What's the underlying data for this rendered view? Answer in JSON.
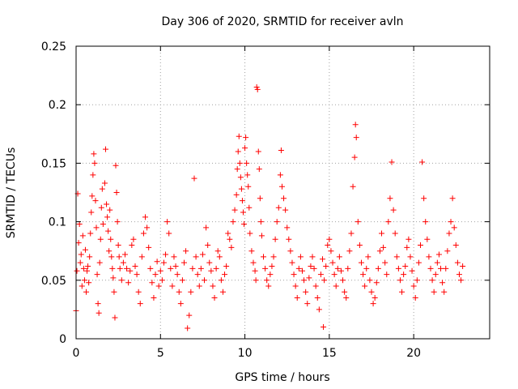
{
  "chart_data": {
    "type": "scatter",
    "title": "Day 306 of 2020, SRMTID for receiver avln",
    "xlabel": "GPS time / hours",
    "ylabel": "SRMTID / TECUs",
    "xlim": [
      0,
      24.5
    ],
    "ylim": [
      0,
      0.25
    ],
    "xticks": [
      0,
      5,
      10,
      15,
      20
    ],
    "xtick_labels": [
      "0",
      "5",
      "10",
      "15",
      "20"
    ],
    "yticks": [
      0,
      0.05,
      0.1,
      0.15,
      0.2,
      0.25
    ],
    "ytick_labels": [
      "0",
      "0.05",
      "0.1",
      "0.15",
      "0.2",
      "0.25"
    ],
    "grid": true,
    "marker": "plus",
    "color": "#ff0000",
    "series": [
      {
        "name": "SRMTID",
        "points": [
          [
            0.0,
            0.024
          ],
          [
            0.05,
            0.058
          ],
          [
            0.1,
            0.124
          ],
          [
            0.15,
            0.082
          ],
          [
            0.2,
            0.098
          ],
          [
            0.25,
            0.065
          ],
          [
            0.3,
            0.072
          ],
          [
            0.35,
            0.045
          ],
          [
            0.4,
            0.088
          ],
          [
            0.45,
            0.06
          ],
          [
            0.5,
            0.05
          ],
          [
            0.55,
            0.076
          ],
          [
            0.6,
            0.04
          ],
          [
            0.65,
            0.058
          ],
          [
            0.7,
            0.062
          ],
          [
            0.75,
            0.048
          ],
          [
            0.8,
            0.07
          ],
          [
            0.85,
            0.09
          ],
          [
            0.9,
            0.108
          ],
          [
            0.95,
            0.122
          ],
          [
            1.0,
            0.14
          ],
          [
            1.05,
            0.158
          ],
          [
            1.1,
            0.15
          ],
          [
            1.15,
            0.118
          ],
          [
            1.2,
            0.095
          ],
          [
            1.25,
            0.055
          ],
          [
            1.3,
            0.03
          ],
          [
            1.35,
            0.022
          ],
          [
            1.4,
            0.065
          ],
          [
            1.45,
            0.085
          ],
          [
            1.5,
            0.112
          ],
          [
            1.55,
            0.128
          ],
          [
            1.6,
            0.098
          ],
          [
            1.7,
            0.133
          ],
          [
            1.75,
            0.162
          ],
          [
            1.8,
            0.115
          ],
          [
            1.85,
            0.104
          ],
          [
            1.9,
            0.092
          ],
          [
            1.95,
            0.075
          ],
          [
            2.0,
            0.11
          ],
          [
            2.05,
            0.085
          ],
          [
            2.1,
            0.07
          ],
          [
            2.15,
            0.06
          ],
          [
            2.2,
            0.052
          ],
          [
            2.25,
            0.04
          ],
          [
            2.3,
            0.018
          ],
          [
            2.35,
            0.148
          ],
          [
            2.4,
            0.125
          ],
          [
            2.45,
            0.1
          ],
          [
            2.5,
            0.08
          ],
          [
            2.55,
            0.07
          ],
          [
            2.6,
            0.06
          ],
          [
            2.7,
            0.05
          ],
          [
            2.8,
            0.065
          ],
          [
            2.9,
            0.072
          ],
          [
            3.0,
            0.06
          ],
          [
            3.1,
            0.048
          ],
          [
            3.2,
            0.058
          ],
          [
            3.3,
            0.08
          ],
          [
            3.4,
            0.085
          ],
          [
            3.5,
            0.062
          ],
          [
            3.6,
            0.055
          ],
          [
            3.7,
            0.04
          ],
          [
            3.8,
            0.03
          ],
          [
            3.9,
            0.07
          ],
          [
            4.0,
            0.09
          ],
          [
            4.1,
            0.104
          ],
          [
            4.2,
            0.095
          ],
          [
            4.3,
            0.078
          ],
          [
            4.4,
            0.06
          ],
          [
            4.5,
            0.048
          ],
          [
            4.6,
            0.035
          ],
          [
            4.7,
            0.055
          ],
          [
            4.8,
            0.066
          ],
          [
            4.9,
            0.045
          ],
          [
            5.0,
            0.058
          ],
          [
            5.1,
            0.05
          ],
          [
            5.2,
            0.065
          ],
          [
            5.3,
            0.072
          ],
          [
            5.4,
            0.1
          ],
          [
            5.5,
            0.09
          ],
          [
            5.6,
            0.06
          ],
          [
            5.7,
            0.045
          ],
          [
            5.8,
            0.07
          ],
          [
            5.9,
            0.062
          ],
          [
            6.0,
            0.055
          ],
          [
            6.1,
            0.04
          ],
          [
            6.2,
            0.03
          ],
          [
            6.3,
            0.05
          ],
          [
            6.4,
            0.065
          ],
          [
            6.5,
            0.075
          ],
          [
            6.6,
            0.009
          ],
          [
            6.7,
            0.02
          ],
          [
            6.8,
            0.04
          ],
          [
            6.9,
            0.06
          ],
          [
            7.0,
            0.137
          ],
          [
            7.1,
            0.07
          ],
          [
            7.2,
            0.055
          ],
          [
            7.3,
            0.045
          ],
          [
            7.4,
            0.06
          ],
          [
            7.5,
            0.072
          ],
          [
            7.6,
            0.05
          ],
          [
            7.7,
            0.095
          ],
          [
            7.8,
            0.08
          ],
          [
            7.9,
            0.065
          ],
          [
            8.0,
            0.058
          ],
          [
            8.1,
            0.045
          ],
          [
            8.2,
            0.035
          ],
          [
            8.3,
            0.06
          ],
          [
            8.4,
            0.075
          ],
          [
            8.5,
            0.07
          ],
          [
            8.6,
            0.05
          ],
          [
            8.7,
            0.04
          ],
          [
            8.8,
            0.055
          ],
          [
            8.9,
            0.062
          ],
          [
            9.0,
            0.09
          ],
          [
            9.1,
            0.085
          ],
          [
            9.2,
            0.078
          ],
          [
            9.3,
            0.1
          ],
          [
            9.4,
            0.11
          ],
          [
            9.5,
            0.123
          ],
          [
            9.55,
            0.145
          ],
          [
            9.6,
            0.16
          ],
          [
            9.65,
            0.173
          ],
          [
            9.7,
            0.15
          ],
          [
            9.75,
            0.138
          ],
          [
            9.8,
            0.128
          ],
          [
            9.85,
            0.118
          ],
          [
            9.9,
            0.108
          ],
          [
            9.95,
            0.098
          ],
          [
            10.0,
            0.163
          ],
          [
            10.05,
            0.172
          ],
          [
            10.1,
            0.15
          ],
          [
            10.15,
            0.14
          ],
          [
            10.2,
            0.13
          ],
          [
            10.25,
            0.112
          ],
          [
            10.3,
            0.09
          ],
          [
            10.4,
            0.075
          ],
          [
            10.5,
            0.065
          ],
          [
            10.6,
            0.058
          ],
          [
            10.65,
            0.05
          ],
          [
            10.7,
            0.215
          ],
          [
            10.75,
            0.213
          ],
          [
            10.8,
            0.16
          ],
          [
            10.85,
            0.145
          ],
          [
            10.9,
            0.12
          ],
          [
            10.95,
            0.1
          ],
          [
            11.0,
            0.088
          ],
          [
            11.1,
            0.07
          ],
          [
            11.2,
            0.06
          ],
          [
            11.3,
            0.05
          ],
          [
            11.4,
            0.045
          ],
          [
            11.5,
            0.055
          ],
          [
            11.6,
            0.062
          ],
          [
            11.7,
            0.07
          ],
          [
            11.8,
            0.085
          ],
          [
            11.9,
            0.1
          ],
          [
            12.0,
            0.112
          ],
          [
            12.1,
            0.14
          ],
          [
            12.15,
            0.161
          ],
          [
            12.2,
            0.13
          ],
          [
            12.3,
            0.12
          ],
          [
            12.4,
            0.11
          ],
          [
            12.5,
            0.095
          ],
          [
            12.6,
            0.085
          ],
          [
            12.7,
            0.075
          ],
          [
            12.8,
            0.065
          ],
          [
            12.9,
            0.055
          ],
          [
            13.0,
            0.045
          ],
          [
            13.1,
            0.035
          ],
          [
            13.2,
            0.06
          ],
          [
            13.3,
            0.07
          ],
          [
            13.4,
            0.058
          ],
          [
            13.5,
            0.05
          ],
          [
            13.6,
            0.04
          ],
          [
            13.7,
            0.03
          ],
          [
            13.8,
            0.052
          ],
          [
            13.9,
            0.062
          ],
          [
            14.0,
            0.07
          ],
          [
            14.1,
            0.06
          ],
          [
            14.2,
            0.045
          ],
          [
            14.3,
            0.035
          ],
          [
            14.4,
            0.025
          ],
          [
            14.5,
            0.055
          ],
          [
            14.6,
            0.068
          ],
          [
            14.65,
            0.01
          ],
          [
            14.7,
            0.05
          ],
          [
            14.8,
            0.062
          ],
          [
            14.9,
            0.08
          ],
          [
            15.0,
            0.085
          ],
          [
            15.1,
            0.075
          ],
          [
            15.2,
            0.065
          ],
          [
            15.3,
            0.055
          ],
          [
            15.4,
            0.045
          ],
          [
            15.5,
            0.06
          ],
          [
            15.6,
            0.07
          ],
          [
            15.7,
            0.058
          ],
          [
            15.8,
            0.05
          ],
          [
            15.9,
            0.04
          ],
          [
            16.0,
            0.035
          ],
          [
            16.1,
            0.06
          ],
          [
            16.2,
            0.075
          ],
          [
            16.3,
            0.09
          ],
          [
            16.4,
            0.13
          ],
          [
            16.5,
            0.155
          ],
          [
            16.55,
            0.183
          ],
          [
            16.6,
            0.172
          ],
          [
            16.7,
            0.1
          ],
          [
            16.8,
            0.08
          ],
          [
            16.9,
            0.065
          ],
          [
            17.0,
            0.055
          ],
          [
            17.1,
            0.045
          ],
          [
            17.2,
            0.06
          ],
          [
            17.3,
            0.07
          ],
          [
            17.4,
            0.05
          ],
          [
            17.5,
            0.04
          ],
          [
            17.6,
            0.03
          ],
          [
            17.7,
            0.035
          ],
          [
            17.8,
            0.048
          ],
          [
            17.9,
            0.06
          ],
          [
            18.0,
            0.075
          ],
          [
            18.1,
            0.09
          ],
          [
            18.2,
            0.078
          ],
          [
            18.3,
            0.065
          ],
          [
            18.4,
            0.055
          ],
          [
            18.5,
            0.1
          ],
          [
            18.6,
            0.12
          ],
          [
            18.7,
            0.151
          ],
          [
            18.8,
            0.11
          ],
          [
            18.9,
            0.09
          ],
          [
            19.0,
            0.07
          ],
          [
            19.1,
            0.06
          ],
          [
            19.2,
            0.05
          ],
          [
            19.3,
            0.04
          ],
          [
            19.4,
            0.055
          ],
          [
            19.5,
            0.062
          ],
          [
            19.6,
            0.078
          ],
          [
            19.7,
            0.085
          ],
          [
            19.8,
            0.07
          ],
          [
            19.9,
            0.058
          ],
          [
            20.0,
            0.045
          ],
          [
            20.1,
            0.035
          ],
          [
            20.2,
            0.05
          ],
          [
            20.3,
            0.065
          ],
          [
            20.4,
            0.08
          ],
          [
            20.5,
            0.151
          ],
          [
            20.6,
            0.12
          ],
          [
            20.7,
            0.1
          ],
          [
            20.8,
            0.085
          ],
          [
            20.9,
            0.07
          ],
          [
            21.0,
            0.06
          ],
          [
            21.1,
            0.05
          ],
          [
            21.2,
            0.04
          ],
          [
            21.3,
            0.055
          ],
          [
            21.4,
            0.065
          ],
          [
            21.5,
            0.072
          ],
          [
            21.6,
            0.06
          ],
          [
            21.7,
            0.048
          ],
          [
            21.8,
            0.04
          ],
          [
            21.9,
            0.06
          ],
          [
            22.0,
            0.075
          ],
          [
            22.1,
            0.09
          ],
          [
            22.2,
            0.1
          ],
          [
            22.3,
            0.12
          ],
          [
            22.4,
            0.095
          ],
          [
            22.5,
            0.08
          ],
          [
            22.6,
            0.065
          ],
          [
            22.7,
            0.055
          ],
          [
            22.8,
            0.05
          ],
          [
            22.9,
            0.062
          ]
        ]
      }
    ]
  }
}
